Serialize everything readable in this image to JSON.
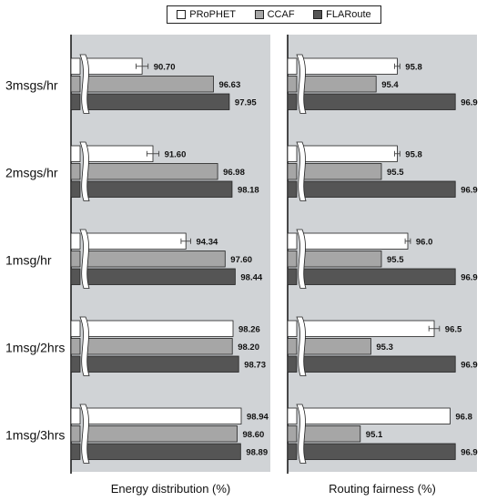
{
  "chart_data": {
    "type": "bar",
    "orientation": "horizontal",
    "categories": [
      "3msgs/hr",
      "2msgs/hr",
      "1msg/hr",
      "1msg/2hrs",
      "1msg/3hrs"
    ],
    "legend": {
      "placement": "top-center",
      "entries": [
        "PRoPHET",
        "CCAF",
        "FLARoute"
      ]
    },
    "series_colors": [
      "#ffffff",
      "#a6a6a6",
      "#555555"
    ],
    "panels": [
      {
        "xlabel": "Energy distribution (%)",
        "axis_break": true,
        "xlim": [
          86,
          100
        ],
        "series": [
          {
            "name": "PRoPHET",
            "values": [
              90.7,
              91.6,
              94.34,
              98.26,
              98.94
            ],
            "labels": [
              "90.70",
              "91.60",
              "94.34",
              "98.26",
              "98.94"
            ],
            "error": [
              0.5,
              0.5,
              0.4,
              0.0,
              0.0
            ]
          },
          {
            "name": "CCAF",
            "values": [
              96.63,
              96.98,
              97.6,
              98.2,
              98.6
            ],
            "labels": [
              "96.63",
              "96.98",
              "97.60",
              "98.20",
              "98.60"
            ],
            "error": [
              0.0,
              0.0,
              0.0,
              0.0,
              0.0
            ]
          },
          {
            "name": "FLARoute",
            "values": [
              97.95,
              98.18,
              98.44,
              98.73,
              98.89
            ],
            "labels": [
              "97.95",
              "98.18",
              "98.44",
              "98.73",
              "98.89"
            ],
            "error": [
              0.0,
              0.0,
              0.0,
              0.0,
              0.0
            ]
          }
        ]
      },
      {
        "xlabel": "Routing fairness (%)",
        "axis_break": true,
        "xlim": [
          94.0,
          97.0
        ],
        "series": [
          {
            "name": "PRoPHET",
            "values": [
              95.8,
              95.8,
              96.0,
              96.5,
              96.8
            ],
            "labels": [
              "95.8",
              "95.8",
              "96.0",
              "96.5",
              "96.8"
            ],
            "error": [
              0.05,
              0.05,
              0.05,
              0.1,
              0.0
            ]
          },
          {
            "name": "CCAF",
            "values": [
              95.4,
              95.5,
              95.5,
              95.3,
              95.1
            ],
            "labels": [
              "95.4",
              "95.5",
              "95.5",
              "95.3",
              "95.1"
            ],
            "error": [
              0.0,
              0.0,
              0.0,
              0.0,
              0.0
            ]
          },
          {
            "name": "FLARoute",
            "values": [
              96.9,
              96.9,
              96.9,
              96.9,
              96.9
            ],
            "labels": [
              "96.9",
              "96.9",
              "96.9",
              "96.9",
              "96.9"
            ],
            "error": [
              0.0,
              0.0,
              0.0,
              0.0,
              0.0
            ]
          }
        ]
      }
    ],
    "grid": false,
    "plot_background": "#d0d3d6"
  }
}
